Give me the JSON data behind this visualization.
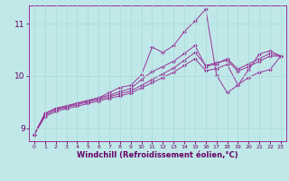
{
  "xlabel": "Windchill (Refroidissement éolien,°C)",
  "bg_color": "#c0e8e8",
  "line_color": "#993399",
  "grid_color": "#aadddd",
  "axis_label_color": "#660066",
  "tick_color": "#660066",
  "spine_color": "#993399",
  "xlim": [
    -0.5,
    23.5
  ],
  "ylim": [
    8.75,
    11.35
  ],
  "yticks": [
    9,
    10,
    11
  ],
  "xticks": [
    0,
    1,
    2,
    3,
    4,
    5,
    6,
    7,
    8,
    9,
    10,
    11,
    12,
    13,
    14,
    15,
    16,
    17,
    18,
    19,
    20,
    21,
    22,
    23
  ],
  "series": [
    [
      8.88,
      9.28,
      9.38,
      9.4,
      9.48,
      9.52,
      9.58,
      9.68,
      9.78,
      9.82,
      10.02,
      10.55,
      10.45,
      10.58,
      10.85,
      11.05,
      11.28,
      10.02,
      9.68,
      9.82,
      10.12,
      10.42,
      10.48,
      10.38
    ],
    [
      8.88,
      9.28,
      9.38,
      9.43,
      9.48,
      9.53,
      9.58,
      9.63,
      9.7,
      9.76,
      9.93,
      10.08,
      10.18,
      10.28,
      10.43,
      10.58,
      10.18,
      10.23,
      10.33,
      10.13,
      10.23,
      10.33,
      10.43,
      10.38
    ],
    [
      8.88,
      9.25,
      9.35,
      9.4,
      9.45,
      9.5,
      9.55,
      9.6,
      9.66,
      9.71,
      9.82,
      9.93,
      10.04,
      10.15,
      10.3,
      10.45,
      10.2,
      10.25,
      10.3,
      10.09,
      10.18,
      10.28,
      10.38,
      10.38
    ],
    [
      8.88,
      9.22,
      9.32,
      9.37,
      9.42,
      9.47,
      9.52,
      9.57,
      9.62,
      9.67,
      9.77,
      9.87,
      9.97,
      10.07,
      10.2,
      10.33,
      10.1,
      10.14,
      10.22,
      9.83,
      9.97,
      10.07,
      10.12,
      10.38
    ]
  ]
}
